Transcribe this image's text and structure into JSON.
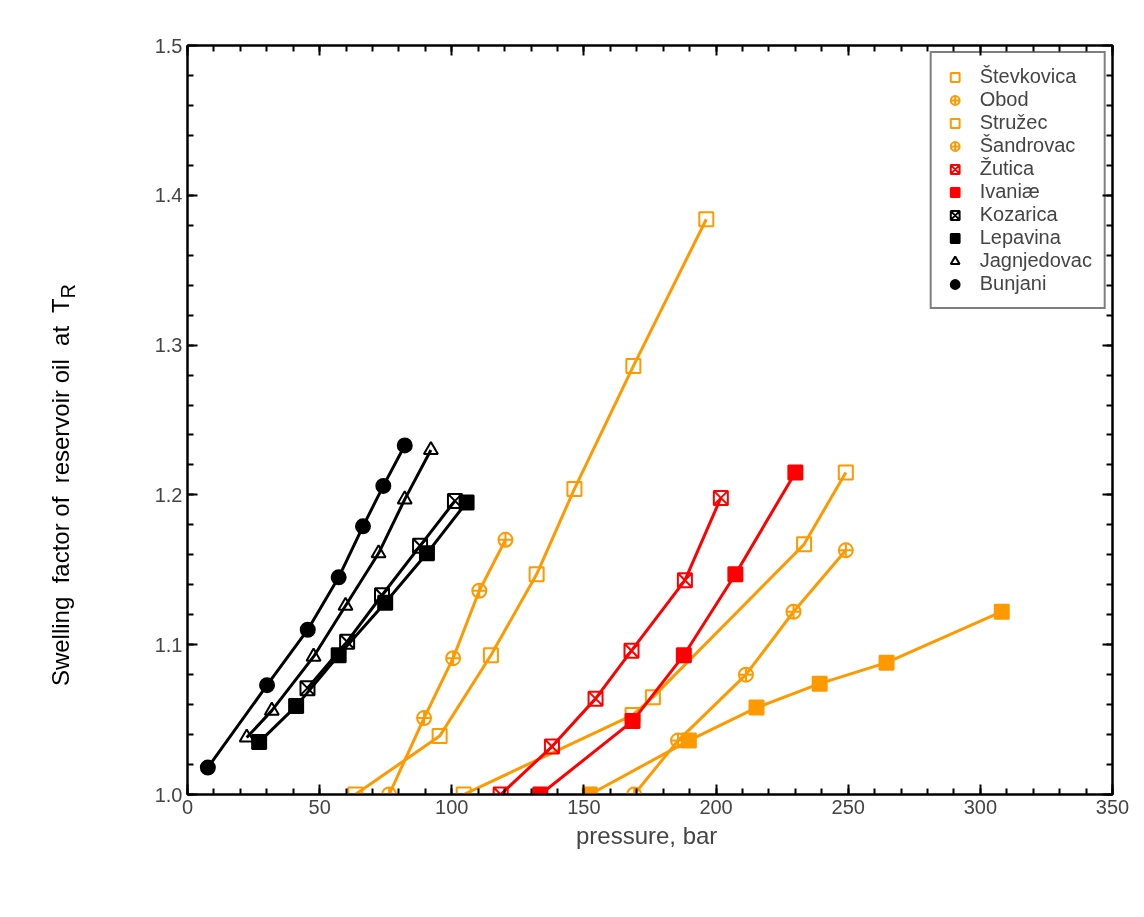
{
  "chart_data": {
    "type": "line",
    "xlabel": "pressure,  bar",
    "ylabel": "Swelling  factor of  reservoir oil  at  T$_{R}$",
    "xlim": [
      0,
      350
    ],
    "ylim": [
      1.0,
      1.5
    ],
    "xticks": [
      0,
      50,
      100,
      150,
      200,
      250,
      300,
      350
    ],
    "yticks": [
      {
        "value": 1.0,
        "label": "1.0"
      },
      1.1,
      1.2,
      1.3,
      1.4,
      1.5
    ],
    "grid": false,
    "legend": "top right",
    "line_style": "solid",
    "series": [
      {
        "name": "Števkovica",
        "color": "#ff9900",
        "marker": "square",
        "x": [
          104.5,
          168.4,
          176.1,
          233.3,
          249.1
        ],
        "values": [
          1.0,
          1.053,
          1.065,
          1.167,
          1.215
        ]
      },
      {
        "name": "Obod",
        "color": "#ff9900",
        "marker": "circle",
        "x": [
          76.3,
          89.5,
          100.5,
          110.4,
          120.3
        ],
        "values": [
          1.0,
          1.051,
          1.091,
          1.136,
          1.17
        ]
      },
      {
        "name": "Stružec",
        "color": "#ff9900",
        "marker": "square",
        "x": [
          63.5,
          95.4,
          114.8,
          132.1,
          146.4,
          168.7,
          196.3
        ],
        "values": [
          1.0,
          1.039,
          1.093,
          1.147,
          1.204,
          1.286,
          1.384
        ]
      },
      {
        "name": "Šandrovac",
        "color": "#ff9900",
        "marker": "circle",
        "x": [
          169,
          185.6,
          211.3,
          229.3,
          249.1
        ],
        "values": [
          1.0,
          1.036,
          1.08,
          1.122,
          1.163
        ]
      },
      {
        "name": "Žutica",
        "color": "#ff0000",
        "marker": "cross",
        "x": [
          118.5,
          137.9,
          154.4,
          168,
          188.2,
          201.8
        ],
        "values": [
          1.0,
          1.032,
          1.064,
          1.096,
          1.143,
          1.198
        ]
      },
      {
        "name": "Ivaniæ",
        "color": "#ff0000",
        "marker": "square",
        "x": [
          133.5,
          168.4,
          187.8,
          207.3,
          230
        ],
        "values": [
          1.0,
          1.049,
          1.093,
          1.147,
          1.215
        ]
      },
      {
        "name": "Kozarica",
        "color": "#000000",
        "marker": "cross",
        "x": [
          45.4,
          60.4,
          73.6,
          88.0,
          101.2
        ],
        "values": [
          1.071,
          1.102,
          1.133,
          1.166,
          1.196
        ]
      },
      {
        "name": "Lepavina",
        "color": "#000000",
        "marker": "square",
        "x": [
          27.1,
          41.1,
          57.2,
          74.8,
          90.6,
          105.6
        ],
        "values": [
          1.035,
          1.059,
          1.093,
          1.128,
          1.161,
          1.195
        ]
      },
      {
        "name": "Jagnjedovac",
        "color": "#000000",
        "marker": "triangle",
        "x": [
          22.4,
          31.9,
          47.7,
          59.8,
          72.3,
          82.2,
          92.1
        ],
        "values": [
          1.038,
          1.056,
          1.092,
          1.126,
          1.161,
          1.197,
          1.23
        ]
      },
      {
        "name": "Bunjani",
        "color": "#000000",
        "marker": "circle",
        "x": [
          7.7,
          30.1,
          45.5,
          57.2,
          66.4,
          74.1,
          82.2
        ],
        "values": [
          1.018,
          1.073,
          1.11,
          1.145,
          1.179,
          1.206,
          1.233
        ]
      },
      {
        "color": "#ff9900",
        "marker": "square",
        "x": [
          152.2,
          189.7,
          215.3,
          239.2,
          264.5,
          308.1
        ],
        "values": [
          1.0,
          1.036,
          1.058,
          1.074,
          1.088,
          1.122
        ]
      }
    ]
  }
}
